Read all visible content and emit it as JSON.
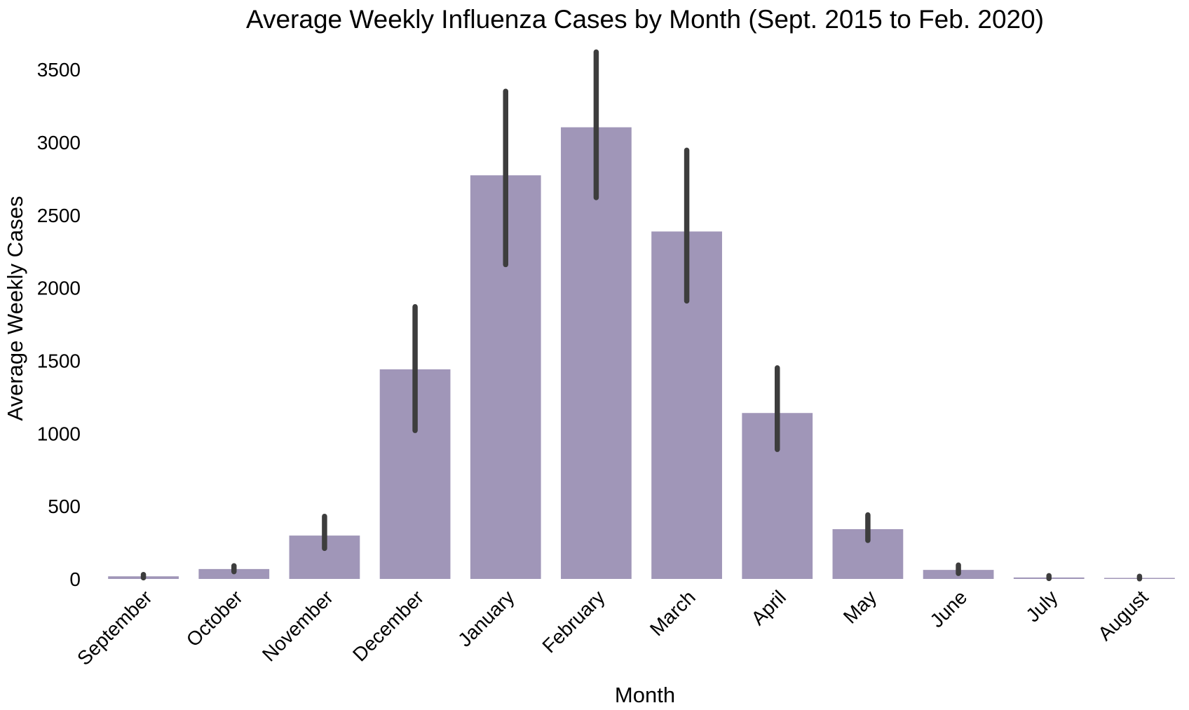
{
  "chart_data": {
    "type": "bar",
    "title": "Average Weekly Influenza Cases by Month (Sept. 2015 to Feb. 2020)",
    "xlabel": "Month",
    "ylabel": "Average Weekly Cases",
    "categories": [
      "September",
      "October",
      "November",
      "December",
      "January",
      "February",
      "March",
      "April",
      "May",
      "June",
      "July",
      "August"
    ],
    "values": [
      18,
      68,
      298,
      1440,
      2773,
      3103,
      2387,
      1140,
      342,
      62,
      10,
      6
    ],
    "error_bars": [
      [
        8,
        30
      ],
      [
        50,
        90
      ],
      [
        210,
        430
      ],
      [
        1020,
        1870
      ],
      [
        2160,
        3350
      ],
      [
        2620,
        3620
      ],
      [
        1910,
        2945
      ],
      [
        890,
        1450
      ],
      [
        265,
        440
      ],
      [
        38,
        95
      ],
      [
        3,
        22
      ],
      [
        1,
        18
      ]
    ],
    "ylim": [
      0,
      3650
    ],
    "yticks": [
      0,
      500,
      1000,
      1500,
      2000,
      2500,
      3000,
      3500
    ],
    "grid": false,
    "colors": {
      "bar": "#a096b8",
      "error_bar": "#3d3d3d",
      "background": "#ffffff"
    }
  }
}
